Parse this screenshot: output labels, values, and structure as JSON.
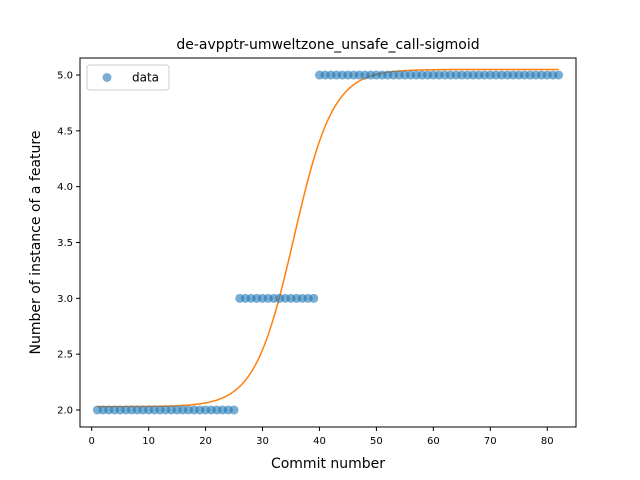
{
  "chart_data": {
    "type": "scatter",
    "title": "de-avpptr-umweltzone_unsafe_call-sigmoid",
    "xlabel": "Commit number",
    "ylabel": "Number of instance of a feature",
    "xlim": [
      -2.05,
      85.05
    ],
    "ylim": [
      1.8475,
      5.1525
    ],
    "xticks": [
      0,
      10,
      20,
      30,
      40,
      50,
      60,
      70,
      80
    ],
    "yticks": [
      2.0,
      2.5,
      3.0,
      3.5,
      4.0,
      4.5,
      5.0
    ],
    "ytick_labels": [
      "2.0",
      "2.5",
      "3.0",
      "3.5",
      "4.0",
      "4.5",
      "5.0"
    ],
    "grid": false,
    "legend": {
      "placement": "top-left",
      "entries": [
        "data"
      ]
    },
    "series": [
      {
        "name": "data",
        "kind": "scatter",
        "color": "#1f77b4",
        "segments": [
          {
            "x_from": 1,
            "x_to": 25,
            "y": 2
          },
          {
            "x_from": 26,
            "x_to": 39,
            "y": 3
          },
          {
            "x_from": 40,
            "x_to": 82,
            "y": 5
          }
        ]
      },
      {
        "kind": "line",
        "color": "#ff7f0e",
        "fit": {
          "model": "sigmoid",
          "lower": 2.03,
          "upper": 5.05,
          "midpoint": 35.5,
          "rate": 0.29,
          "x_from": 1,
          "x_to": 82
        }
      }
    ]
  }
}
